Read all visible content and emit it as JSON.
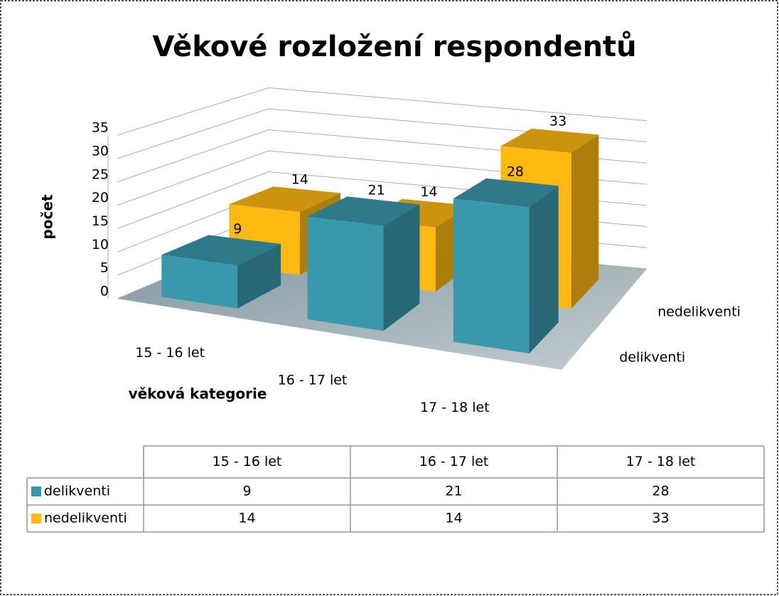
{
  "chart_data": {
    "type": "bar3d",
    "title": "Věkové rozložení respondentů",
    "y_label": "počet",
    "x_label": "věková kategorie",
    "categories": [
      "15 - 16 let",
      "16 - 17 let",
      "17 - 18 let"
    ],
    "series": [
      {
        "name": "delikventi",
        "color": "#3a98ad",
        "values": [
          9,
          21,
          28
        ]
      },
      {
        "name": "nedelikventi",
        "color": "#ffb911",
        "values": [
          14,
          14,
          33
        ]
      }
    ],
    "ylim": [
      0,
      35
    ],
    "yticks": [
      0,
      5,
      10,
      15,
      20,
      25,
      30,
      35
    ],
    "grid": true,
    "data_table": true
  }
}
